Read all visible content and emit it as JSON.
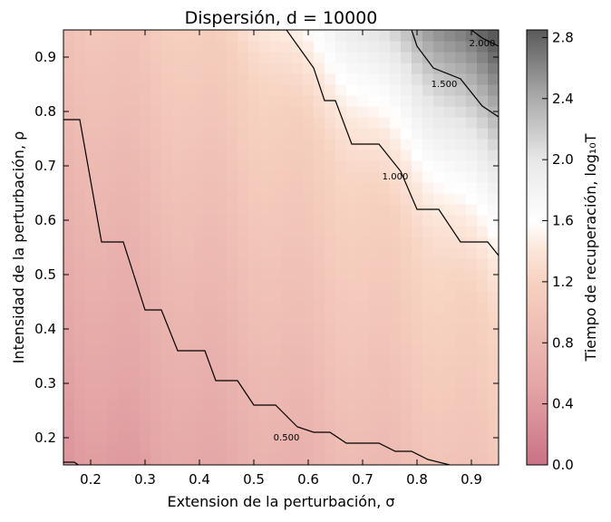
{
  "chart_data": {
    "type": "heatmap",
    "title": "Dispersión, d = 10000",
    "xlabel": "Extension de la perturbación, σ",
    "ylabel": "Intensidad de la perturbación, ρ",
    "colorbar_label": "Tiempo de recuperación, log₁₀T",
    "xlim": [
      0.15,
      0.95
    ],
    "ylim": [
      0.15,
      0.95
    ],
    "clim": [
      0.0,
      2.85
    ],
    "x_ticks": [
      "0.2",
      "0.3",
      "0.4",
      "0.5",
      "0.6",
      "0.7",
      "0.8",
      "0.9"
    ],
    "y_ticks": [
      "0.2",
      "0.3",
      "0.4",
      "0.5",
      "0.6",
      "0.7",
      "0.8",
      "0.9"
    ],
    "colorbar_ticks": [
      "0.0",
      "0.4",
      "0.8",
      "1.2",
      "1.6",
      "2.0",
      "2.4",
      "2.8"
    ],
    "colormap": [
      "#cc7a8a",
      "#f3c2b2",
      "#ffffff",
      "#555555"
    ],
    "grid": false,
    "contours": [
      {
        "level": 0.5,
        "label": "0.500",
        "points": [
          [
            0.15,
            0.155
          ],
          [
            0.17,
            0.155
          ],
          [
            0.18,
            0.148
          ],
          [
            0.3,
            0.148
          ],
          [
            0.38,
            0.148
          ],
          [
            0.45,
            0.148
          ],
          [
            0.55,
            0.148
          ],
          [
            0.65,
            0.148
          ],
          [
            0.75,
            0.148
          ],
          [
            0.85,
            0.148
          ]
        ],
        "label_at": [
          0.56,
          0.2
        ]
      },
      {
        "level": 0.5,
        "label": "",
        "points": [
          [
            0.15,
            0.785
          ],
          [
            0.18,
            0.785
          ],
          [
            0.22,
            0.56
          ],
          [
            0.26,
            0.56
          ],
          [
            0.3,
            0.435
          ],
          [
            0.33,
            0.435
          ],
          [
            0.36,
            0.36
          ],
          [
            0.41,
            0.36
          ],
          [
            0.43,
            0.305
          ],
          [
            0.47,
            0.305
          ],
          [
            0.5,
            0.26
          ],
          [
            0.54,
            0.26
          ],
          [
            0.58,
            0.22
          ],
          [
            0.61,
            0.21
          ],
          [
            0.64,
            0.21
          ],
          [
            0.67,
            0.19
          ],
          [
            0.73,
            0.19
          ],
          [
            0.76,
            0.175
          ],
          [
            0.79,
            0.175
          ],
          [
            0.82,
            0.16
          ],
          [
            0.86,
            0.15
          ]
        ]
      },
      {
        "level": 1.0,
        "label": "1.000",
        "points": [
          [
            0.5,
            0.95
          ],
          [
            0.56,
            0.95
          ],
          [
            0.61,
            0.88
          ],
          [
            0.63,
            0.82
          ],
          [
            0.65,
            0.82
          ],
          [
            0.68,
            0.74
          ],
          [
            0.73,
            0.74
          ],
          [
            0.77,
            0.69
          ],
          [
            0.8,
            0.62
          ],
          [
            0.84,
            0.62
          ],
          [
            0.88,
            0.56
          ],
          [
            0.93,
            0.56
          ],
          [
            0.95,
            0.535
          ]
        ],
        "label_at": [
          0.76,
          0.68
        ]
      },
      {
        "level": 1.5,
        "label": "1.500",
        "points": [
          [
            0.79,
            0.95
          ],
          [
            0.8,
            0.92
          ],
          [
            0.83,
            0.88
          ],
          [
            0.88,
            0.86
          ],
          [
            0.92,
            0.81
          ],
          [
            0.95,
            0.79
          ]
        ],
        "label_at": [
          0.85,
          0.85
        ]
      },
      {
        "level": 2.0,
        "label": "2.000",
        "points": [
          [
            0.9,
            0.95
          ],
          [
            0.92,
            0.935
          ],
          [
            0.95,
            0.92
          ]
        ],
        "label_at": [
          0.92,
          0.925
        ]
      }
    ]
  }
}
